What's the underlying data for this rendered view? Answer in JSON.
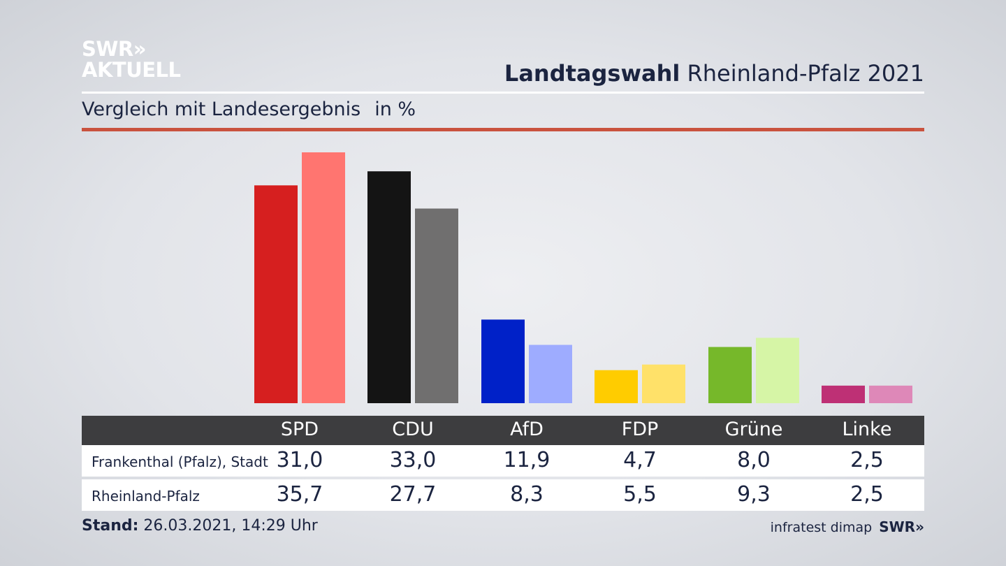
{
  "logo": {
    "line1": "SWR»",
    "line2": "AKTUELL"
  },
  "header": {
    "title_bold": "Landtagswahl",
    "title_rest": "Rheinland-Pfalz 2021"
  },
  "subtitle": {
    "text": "Vergleich mit Landesergebnis",
    "unit": "in %"
  },
  "footer": {
    "stand_label": "Stand:",
    "stand_value": "26.03.2021, 14:29 Uhr",
    "source": "infratest dimap",
    "source_logo": "SWR»"
  },
  "table": {
    "headers": [
      "SPD",
      "CDU",
      "AfD",
      "FDP",
      "Grüne",
      "Linke"
    ],
    "rows": [
      {
        "label": "Frankenthal (Pfalz), Stadt",
        "values": [
          "31,0",
          "33,0",
          "11,9",
          "4,7",
          "8,0",
          "2,5"
        ]
      },
      {
        "label": "Rheinland-Pfalz",
        "values": [
          "35,7",
          "27,7",
          "8,3",
          "5,5",
          "9,3",
          "2,5"
        ]
      }
    ]
  },
  "chart_data": {
    "type": "bar",
    "categories": [
      "SPD",
      "CDU",
      "AfD",
      "FDP",
      "Grüne",
      "Linke"
    ],
    "series": [
      {
        "name": "Frankenthal (Pfalz), Stadt",
        "values": [
          31.0,
          33.0,
          11.9,
          4.7,
          8.0,
          2.5
        ],
        "colors": [
          "#d61f1f",
          "#141414",
          "#0021c8",
          "#ffcc00",
          "#76b82a",
          "#be3075"
        ]
      },
      {
        "name": "Rheinland-Pfalz",
        "values": [
          35.7,
          27.7,
          8.3,
          5.5,
          9.3,
          2.5
        ],
        "colors": [
          "#ff7570",
          "#706f6f",
          "#9eacff",
          "#ffe169",
          "#d6f5a6",
          "#de88b8"
        ]
      }
    ],
    "ylim": [
      0,
      36
    ],
    "grid": false
  },
  "colors": {
    "accent_rule": "#c9523e",
    "table_header_bg": "#3d3d3f",
    "text": "#1b2440"
  }
}
